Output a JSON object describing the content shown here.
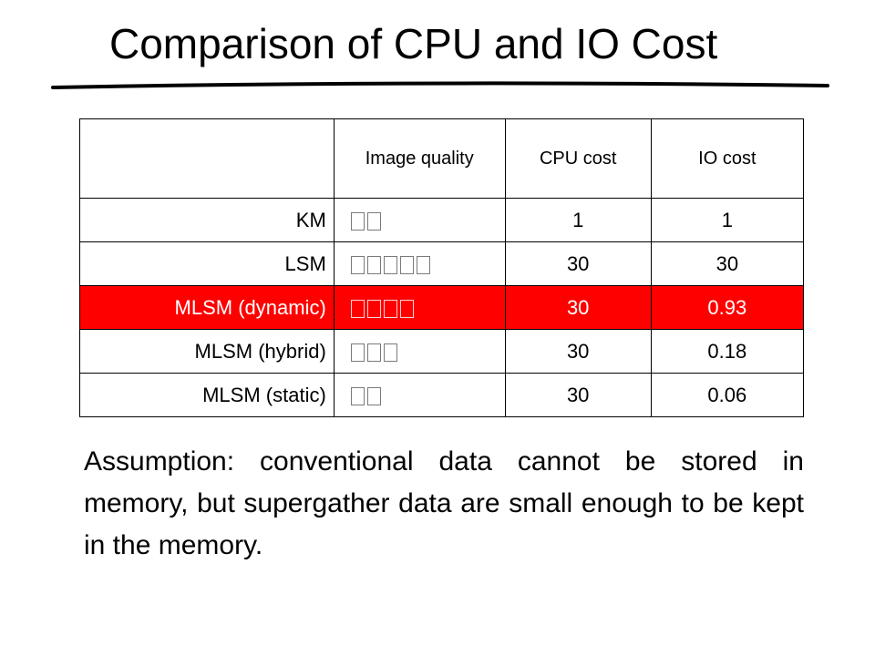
{
  "slide": {
    "title": "Comparison of CPU and IO Cost"
  },
  "table": {
    "headers": [
      "",
      "Image quality",
      "CPU cost",
      "IO cost"
    ],
    "rows": [
      {
        "label": "KM",
        "quality_marks": 2,
        "cpu": "1",
        "io": "1",
        "highlight": false
      },
      {
        "label": "LSM",
        "quality_marks": 5,
        "cpu": "30",
        "io": "30",
        "highlight": false
      },
      {
        "label": "MLSM (dynamic)",
        "quality_marks": 4,
        "cpu": "30",
        "io": "0.93",
        "highlight": true
      },
      {
        "label": "MLSM (hybrid)",
        "quality_marks": 3,
        "cpu": "30",
        "io": "0.18",
        "highlight": false
      },
      {
        "label": "MLSM (static)",
        "quality_marks": 2,
        "cpu": "30",
        "io": "0.06",
        "highlight": false
      }
    ],
    "highlight_color": "#ff0000"
  },
  "assumption": "Assumption: conventional data cannot be stored in memory, but supergather data are small enough to be kept in the memory."
}
